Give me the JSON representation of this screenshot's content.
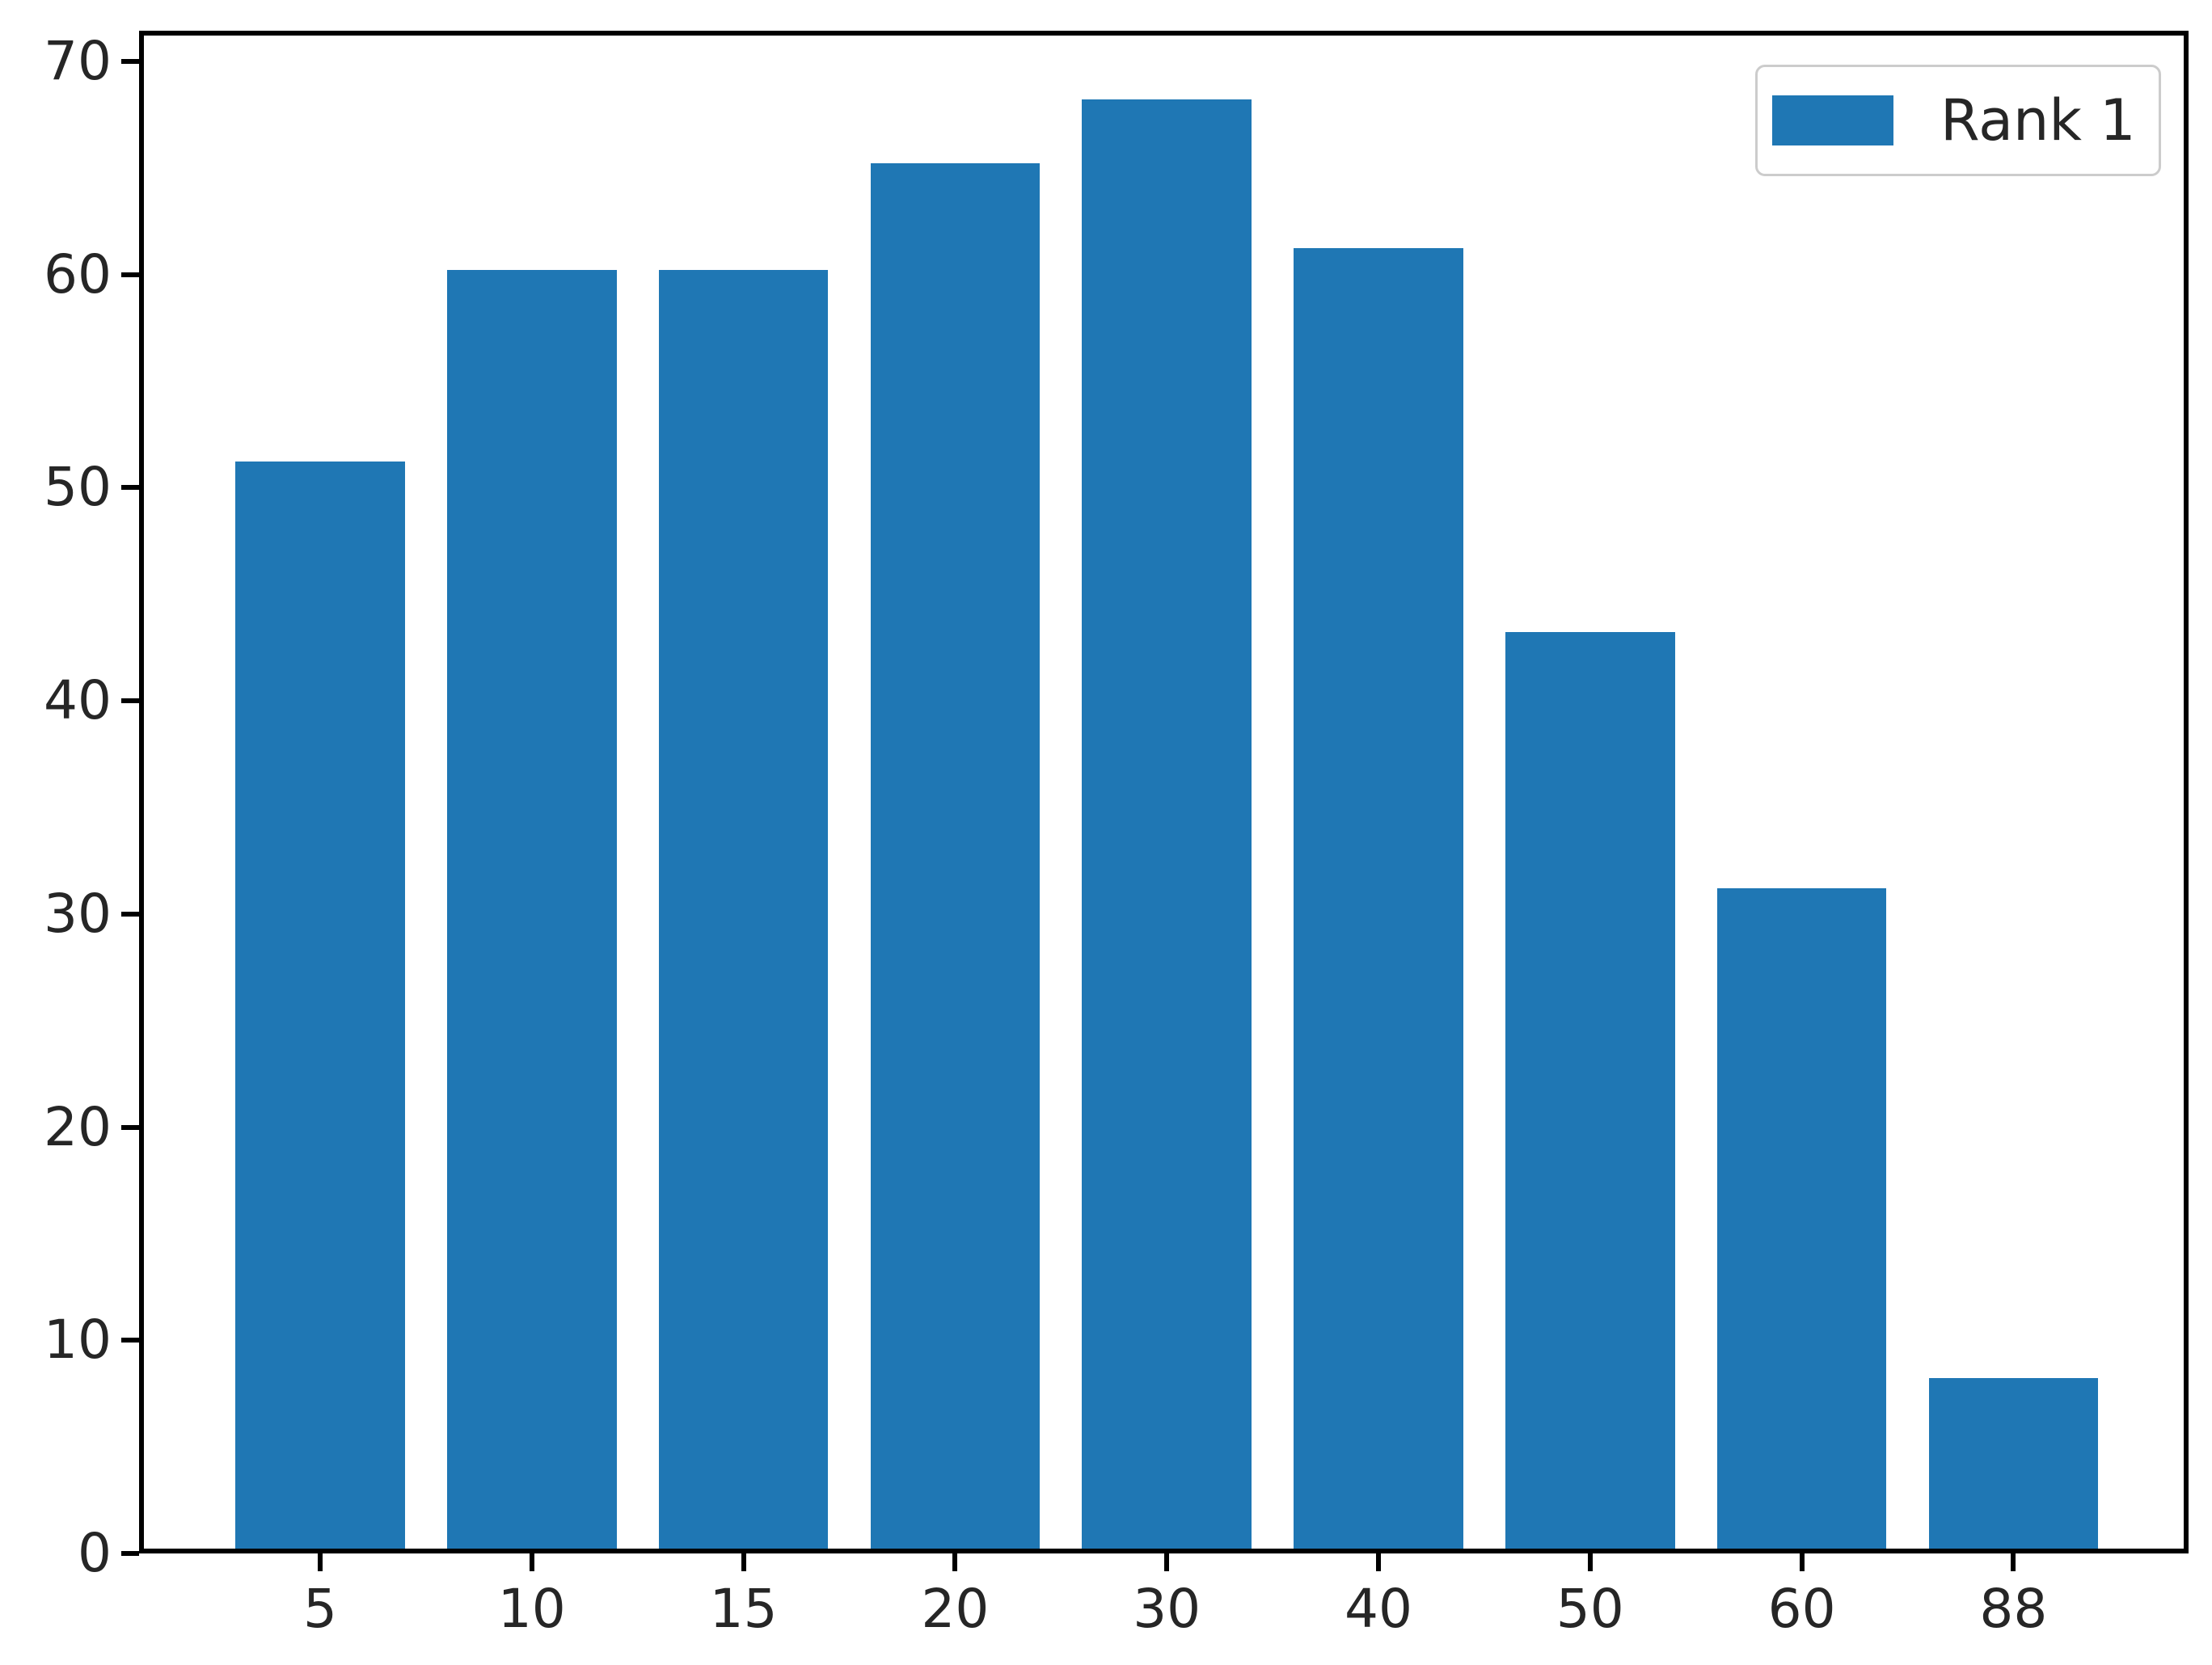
{
  "chart_data": {
    "type": "bar",
    "categories": [
      "5",
      "10",
      "15",
      "20",
      "30",
      "40",
      "50",
      "60",
      "88"
    ],
    "values": [
      51,
      60,
      60,
      65,
      68,
      61,
      43,
      31,
      8
    ],
    "title": "",
    "xlabel": "",
    "ylabel": "",
    "ylim": [
      0,
      70
    ],
    "yticks": [
      0,
      10,
      20,
      30,
      40,
      50,
      60,
      70
    ],
    "grid": false,
    "bar_color": "#1f77b4",
    "axis_color": "#000000",
    "legend": {
      "position": "upper right",
      "entries": [
        {
          "label": "Rank 1",
          "color": "#1f77b4"
        }
      ]
    }
  }
}
